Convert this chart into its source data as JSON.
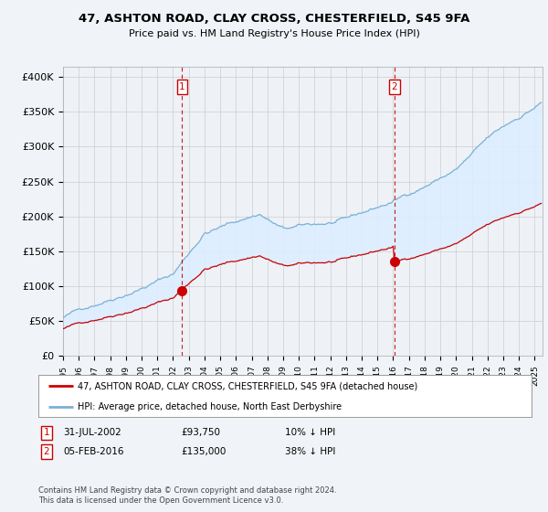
{
  "title": "47, ASHTON ROAD, CLAY CROSS, CHESTERFIELD, S45 9FA",
  "subtitle": "Price paid vs. HM Land Registry's House Price Index (HPI)",
  "ylabel_ticks": [
    "£0",
    "£50K",
    "£100K",
    "£150K",
    "£200K",
    "£250K",
    "£300K",
    "£350K",
    "£400K"
  ],
  "ytick_values": [
    0,
    50000,
    100000,
    150000,
    200000,
    250000,
    300000,
    350000,
    400000
  ],
  "ylim": [
    0,
    415000
  ],
  "xlim_start": 1995.0,
  "xlim_end": 2025.5,
  "sale1_x": 2002.58,
  "sale1_y": 93750,
  "sale2_x": 2016.09,
  "sale2_y": 135000,
  "line_color_property": "#cc0000",
  "line_color_hpi": "#7ab0d4",
  "fill_color": "#ddeeff",
  "vline_color": "#cc0000",
  "legend_label_property": "47, ASHTON ROAD, CLAY CROSS, CHESTERFIELD, S45 9FA (detached house)",
  "legend_label_hpi": "HPI: Average price, detached house, North East Derbyshire",
  "annotation1_date": "31-JUL-2002",
  "annotation1_price": "£93,750",
  "annotation1_hpi": "10% ↓ HPI",
  "annotation2_date": "05-FEB-2016",
  "annotation2_price": "£135,000",
  "annotation2_hpi": "38% ↓ HPI",
  "footnote": "Contains HM Land Registry data © Crown copyright and database right 2024.\nThis data is licensed under the Open Government Licence v3.0.",
  "background_color": "#f0f4f8",
  "plot_bg_color": "#eef2f7",
  "grid_color": "#cccccc"
}
